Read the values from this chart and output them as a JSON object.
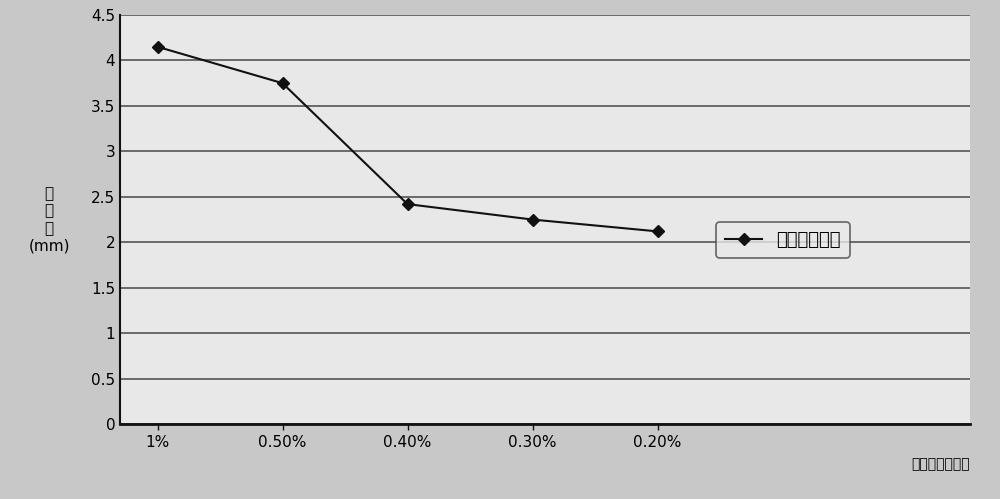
{
  "x_labels": [
    "1%",
    "0.50%",
    "0.40%",
    "0.30%",
    "0.20%"
  ],
  "x_values": [
    0,
    1,
    2,
    3,
    4
  ],
  "y_values": [
    4.15,
    3.75,
    2.42,
    2.25,
    2.12
  ],
  "ylim": [
    0,
    4.5
  ],
  "yticks": [
    0,
    0.5,
    1,
    1.5,
    2,
    2.5,
    3,
    3.5,
    4,
    4.5
  ],
  "xlim_max": 6.5,
  "line_color": "#111111",
  "marker": "D",
  "marker_size": 6,
  "marker_color": "#111111",
  "legend_label": "最大位移变形",
  "ylabel_lines": [
    "位",
    "移",
    "量",
    "(mm)"
  ],
  "xlabel_note": "硬化剂质量含量",
  "bg_color": "#c8c8c8",
  "plot_bg_color": "#e8e8e8",
  "grid_color": "#555555",
  "figsize": [
    10.0,
    4.99
  ],
  "dpi": 100
}
